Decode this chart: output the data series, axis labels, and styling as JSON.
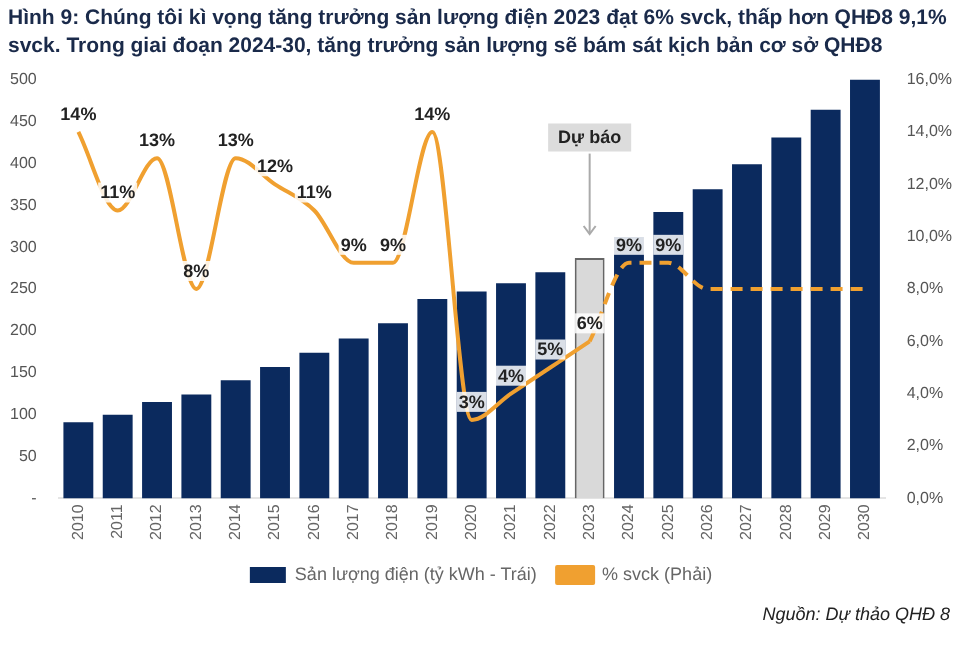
{
  "chart_data": {
    "type": "bar",
    "title": "Hình 9: Chúng tôi kì vọng tăng trưởng sản lượng điện 2023 đạt 6% svck, thấp hơn QHĐ8 9,1% svck. Trong giai đoạn 2024-30, tăng trưởng sản lượng sẽ bám sát kịch bản cơ sở QHĐ8",
    "categories": [
      "2010",
      "2011",
      "2012",
      "2013",
      "2014",
      "2015",
      "2016",
      "2017",
      "2018",
      "2019",
      "2020",
      "2021",
      "2022",
      "2023",
      "2024",
      "2025",
      "2026",
      "2027",
      "2028",
      "2029",
      "2030"
    ],
    "series": [
      {
        "name": "Sản lượng điện (tỷ kWh - Trái)",
        "color": "#0b2a5e",
        "colors": [
          "#0b2a5e",
          "#0b2a5e",
          "#0b2a5e",
          "#0b2a5e",
          "#0b2a5e",
          "#0b2a5e",
          "#0b2a5e",
          "#0b2a5e",
          "#0b2a5e",
          "#0b2a5e",
          "#0b2a5e",
          "#0b2a5e",
          "#0b2a5e",
          "#d9d9d9",
          "#0b2a5e",
          "#0b2a5e",
          "#0b2a5e",
          "#0b2a5e",
          "#0b2a5e",
          "#0b2a5e",
          "#0b2a5e"
        ],
        "values": [
          91,
          100,
          115,
          124,
          141,
          157,
          174,
          191,
          209,
          238,
          247,
          257,
          270,
          287,
          312,
          342,
          369,
          399,
          431,
          464,
          500
        ]
      },
      {
        "name": "% svck (Phải)",
        "type": "line",
        "axis": "y2",
        "color": "#f0a030",
        "line_style": "solid",
        "values": [
          14,
          11,
          13,
          8,
          13,
          12,
          11,
          9,
          9,
          14,
          3,
          4,
          5,
          6,
          null,
          null,
          null,
          null,
          null,
          null,
          null
        ],
        "value_labels": [
          "14%",
          "11%",
          "13%",
          "8%",
          "13%",
          "12%",
          "11%",
          "9%",
          "9%",
          "14%",
          "3%",
          "4%",
          "5%",
          "6%",
          null,
          null,
          null,
          null,
          null,
          null,
          null
        ]
      },
      {
        "type": "line",
        "axis": "y2",
        "color": "#f0a030",
        "line_style": "dashed",
        "values": [
          null,
          null,
          null,
          null,
          null,
          null,
          null,
          null,
          null,
          null,
          null,
          null,
          null,
          6,
          9,
          9,
          8,
          8,
          8,
          8,
          8
        ],
        "value_labels": [
          null,
          null,
          null,
          null,
          null,
          null,
          null,
          null,
          null,
          null,
          null,
          null,
          null,
          null,
          "9%",
          "9%",
          null,
          null,
          null,
          null,
          null
        ]
      }
    ],
    "ylim": [
      0,
      500
    ],
    "yticks": [
      {
        "value": 0,
        "label": "-"
      },
      50,
      100,
      150,
      200,
      250,
      300,
      350,
      400,
      450,
      500
    ],
    "y2lim": [
      0,
      16
    ],
    "y2ticks": [
      {
        "value": 0,
        "label": "0,0%"
      },
      {
        "value": 2,
        "label": "2,0%"
      },
      {
        "value": 4,
        "label": "4,0%"
      },
      {
        "value": 6,
        "label": "6,0%"
      },
      {
        "value": 8,
        "label": "8,0%"
      },
      {
        "value": 10,
        "label": "10,0%"
      },
      {
        "value": 12,
        "label": "12,0%"
      },
      {
        "value": 14,
        "label": "14,0%"
      },
      {
        "value": 16,
        "label": "16,0%"
      }
    ],
    "grid": false,
    "legend": "bottom",
    "annotations": [
      {
        "text": "Dự báo",
        "x": "2023"
      },
      "Nguồn: Dự thảo QHĐ 8"
    ]
  }
}
